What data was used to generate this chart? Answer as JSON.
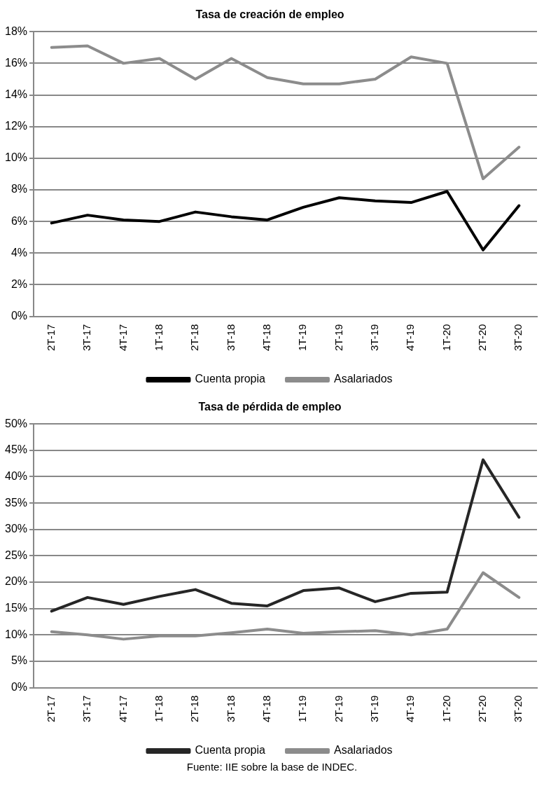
{
  "chart_data": [
    {
      "type": "line",
      "title": "Tasa de creación de empleo",
      "categories": [
        "2T-17",
        "3T-17",
        "4T-17",
        "1T-18",
        "2T-18",
        "3T-18",
        "4T-18",
        "1T-19",
        "2T-19",
        "3T-19",
        "4T-19",
        "1T-20",
        "2T-20",
        "3T-20"
      ],
      "series": [
        {
          "name": "Cuenta propia",
          "color": "#000000",
          "values": [
            5.9,
            6.4,
            6.1,
            6.0,
            6.6,
            6.3,
            6.1,
            6.9,
            7.5,
            7.3,
            7.2,
            7.9,
            4.2,
            7.0
          ]
        },
        {
          "name": "Asalariados",
          "color": "#8c8c8c",
          "values": [
            17.0,
            17.1,
            16.0,
            16.3,
            15.0,
            16.3,
            15.1,
            14.7,
            14.7,
            15.0,
            16.4,
            16.0,
            8.7,
            10.7
          ]
        }
      ],
      "ylim": [
        0,
        18
      ],
      "yticks": [
        {
          "value": 0,
          "label": "0%"
        },
        {
          "value": 2,
          "label": "2%"
        },
        {
          "value": 4,
          "label": "4%"
        },
        {
          "value": 6,
          "label": "6%"
        },
        {
          "value": 8,
          "label": "8%"
        },
        {
          "value": 10,
          "label": "10%"
        },
        {
          "value": 12,
          "label": "12%"
        },
        {
          "value": 14,
          "label": "14%"
        },
        {
          "value": 16,
          "label": "16%"
        },
        {
          "value": 18,
          "label": "18%"
        }
      ],
      "grid": "y",
      "legend": "bottom",
      "marker": "none",
      "line_style": "solid"
    },
    {
      "type": "line",
      "title": "Tasa de pérdida de empleo",
      "categories": [
        "2T-17",
        "3T-17",
        "4T-17",
        "1T-18",
        "2T-18",
        "3T-18",
        "4T-18",
        "1T-19",
        "2T-19",
        "3T-19",
        "4T-19",
        "1T-20",
        "2T-20",
        "3T-20"
      ],
      "series": [
        {
          "name": "Cuenta propia",
          "color": "#262626",
          "values": [
            14.5,
            17.1,
            15.8,
            17.3,
            18.6,
            16.0,
            15.5,
            18.4,
            18.9,
            16.3,
            17.9,
            18.1,
            43.2,
            32.3
          ]
        },
        {
          "name": "Asalariados",
          "color": "#8c8c8c",
          "values": [
            10.6,
            10.0,
            9.2,
            9.8,
            9.8,
            10.4,
            11.1,
            10.3,
            10.6,
            10.8,
            10.0,
            11.1,
            21.8,
            17.1
          ]
        }
      ],
      "ylim": [
        0,
        50
      ],
      "yticks": [
        {
          "value": 0,
          "label": "0%"
        },
        {
          "value": 5,
          "label": "5%"
        },
        {
          "value": 10,
          "label": "10%"
        },
        {
          "value": 15,
          "label": "15%"
        },
        {
          "value": 20,
          "label": "20%"
        },
        {
          "value": 25,
          "label": "25%"
        },
        {
          "value": 30,
          "label": "30%"
        },
        {
          "value": 35,
          "label": "35%"
        },
        {
          "value": 40,
          "label": "40%"
        },
        {
          "value": 45,
          "label": "45%"
        },
        {
          "value": 50,
          "label": "50%"
        }
      ],
      "grid": "y",
      "legend": "bottom",
      "marker": "none",
      "line_style": "solid",
      "annotations": [
        "Fuente: IIE sobre la base de INDEC."
      ]
    }
  ]
}
